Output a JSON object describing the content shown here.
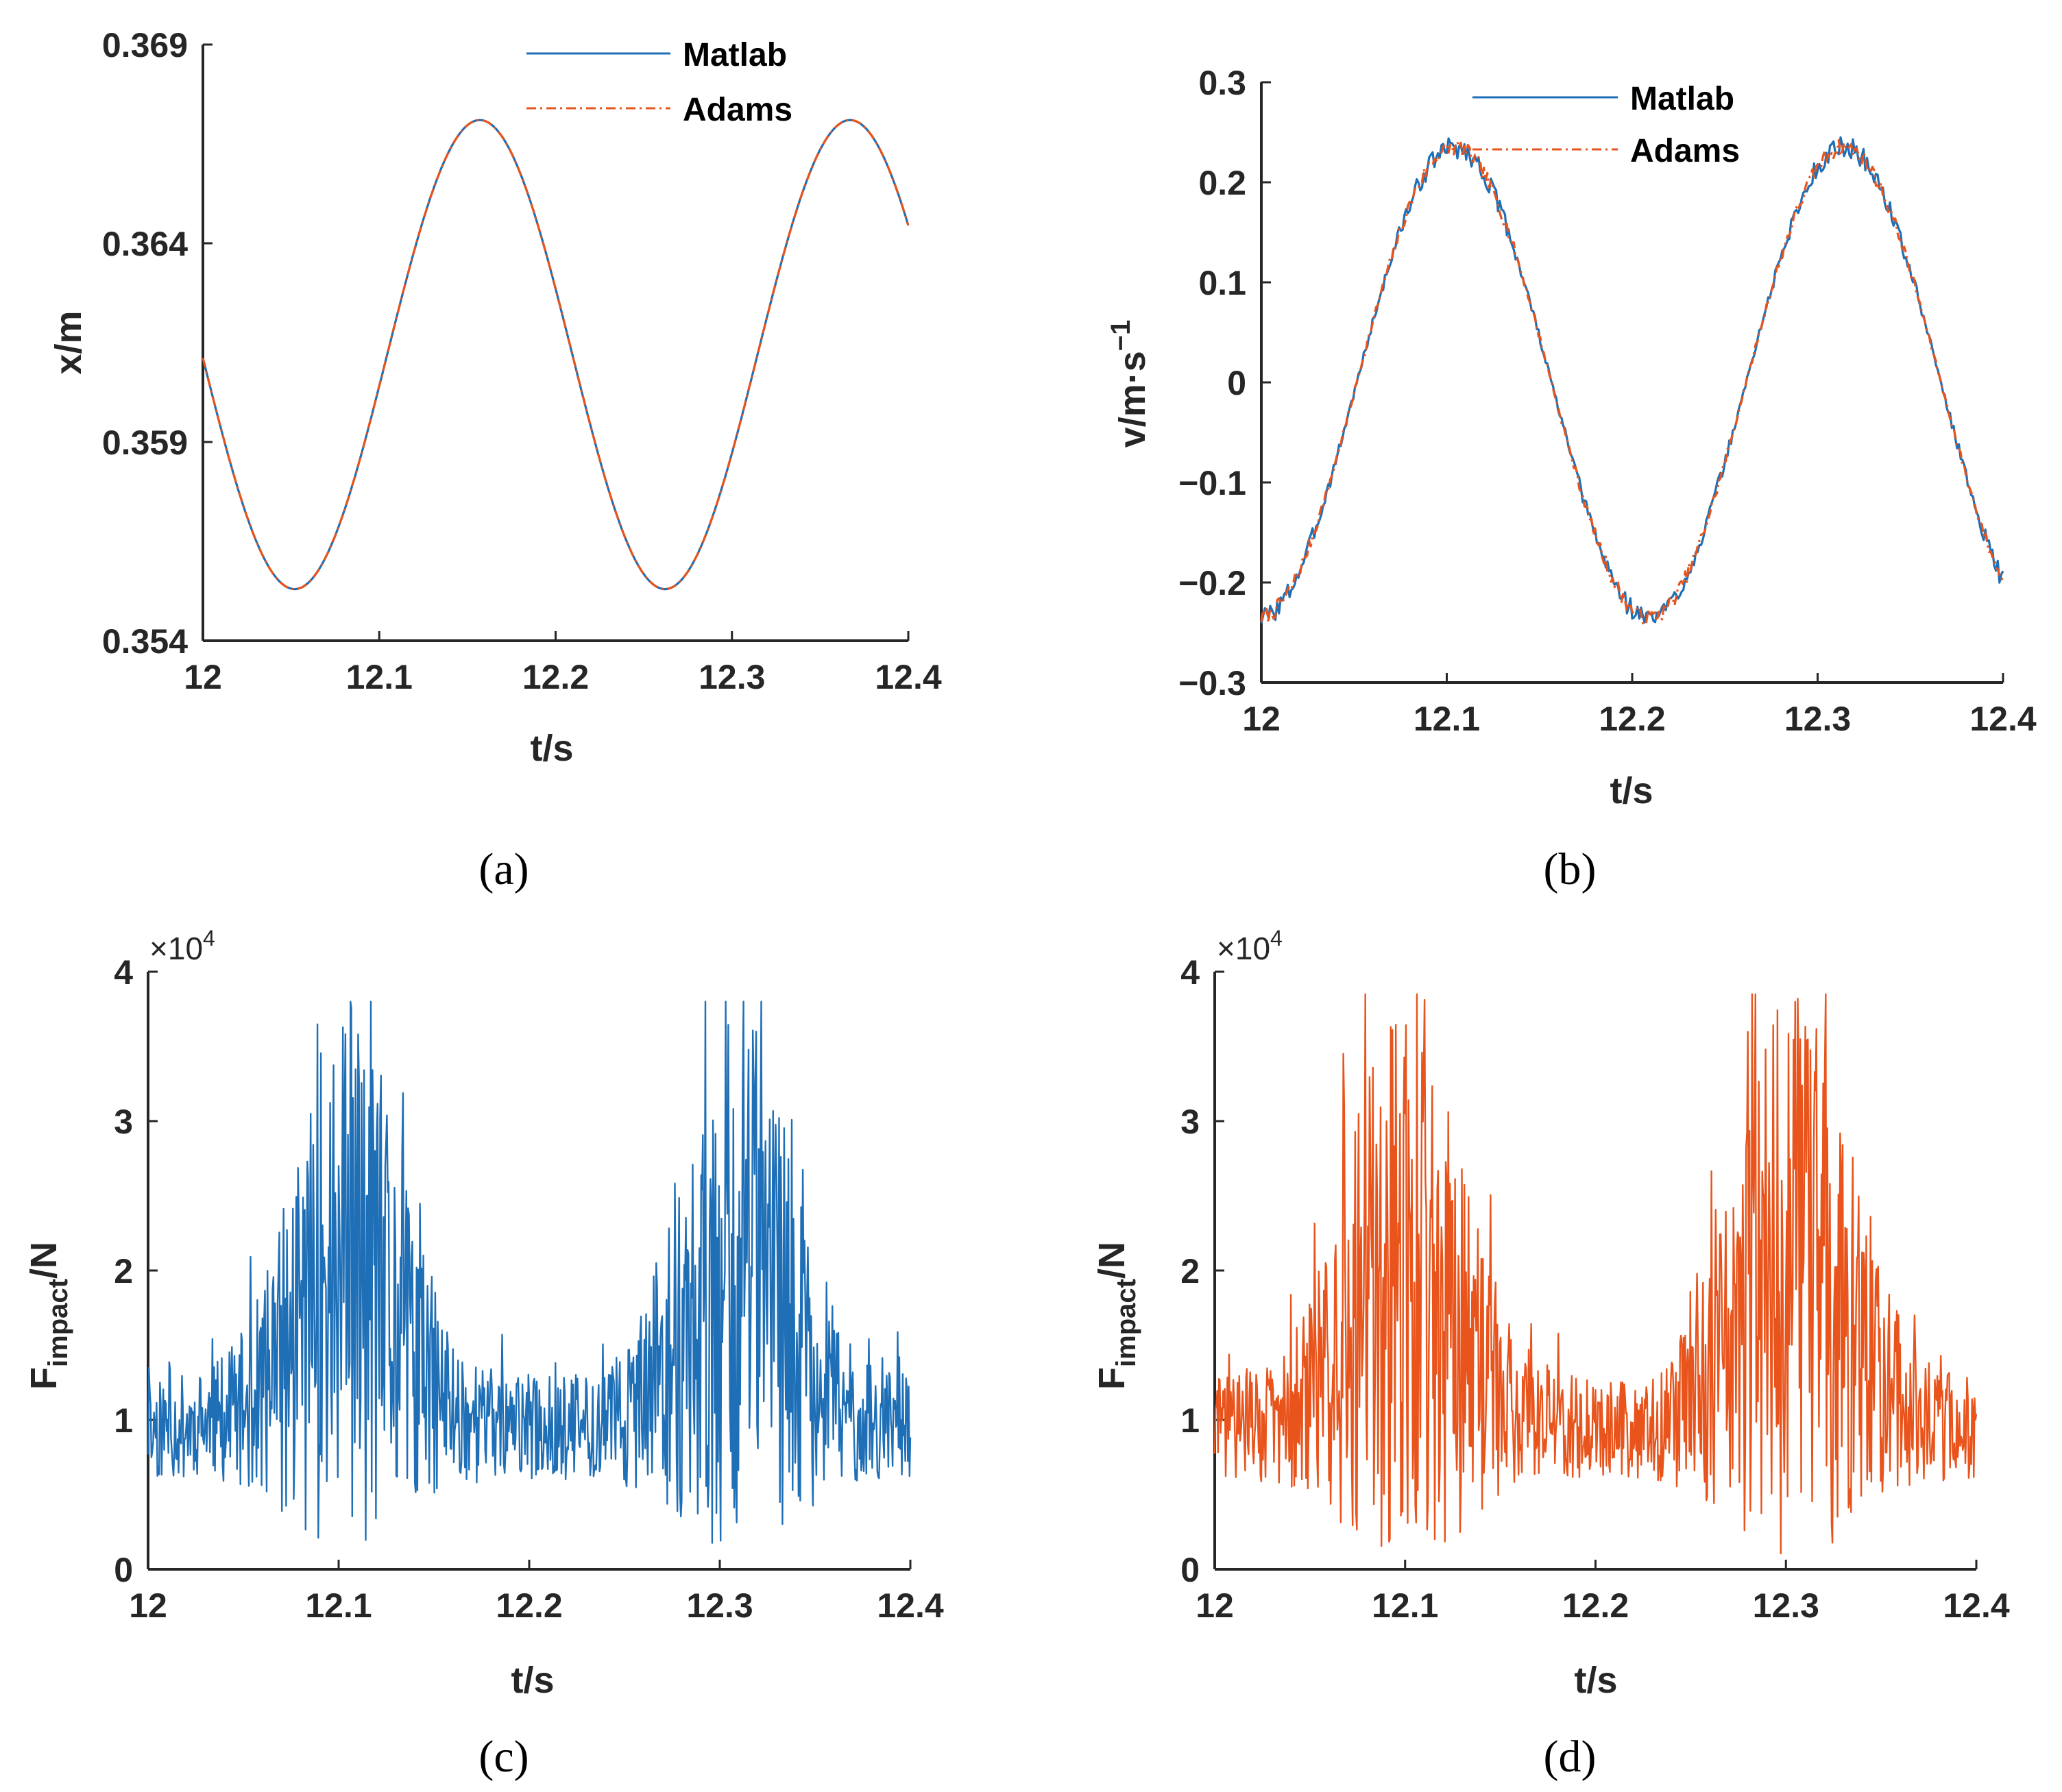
{
  "colors": {
    "matlab": "#1f6fb7",
    "adams": "#e8541c",
    "axis": "#262626"
  },
  "panels": {
    "a": {
      "label": "(a)"
    },
    "b": {
      "label": "(b)"
    },
    "c": {
      "label": "(c)"
    },
    "d": {
      "label": "(d)"
    }
  },
  "chart_data": [
    {
      "id": "a",
      "type": "line",
      "xlabel": "t/s",
      "ylabel": "x/m",
      "xlim": [
        12,
        12.4
      ],
      "ylim": [
        0.354,
        0.369
      ],
      "xticks": [
        12,
        12.1,
        12.2,
        12.3,
        12.4
      ],
      "xtick_labels": [
        "12",
        "12.1",
        "12.2",
        "12.3",
        "12.4"
      ],
      "yticks": [
        0.354,
        0.359,
        0.364,
        0.369
      ],
      "ytick_labels": [
        "0.354",
        "0.359",
        "0.364",
        "0.369"
      ],
      "legend": [
        "Matlab",
        "Adams"
      ],
      "legend_position": "top-right",
      "series": [
        {
          "name": "Matlab",
          "style": "solid",
          "model": "sine",
          "params": {
            "offset": 0.3612,
            "amplitude": 0.0059,
            "period": 0.21,
            "peak_t": 12.157
          }
        },
        {
          "name": "Adams",
          "style": "dash-dot",
          "model": "sine",
          "params": {
            "offset": 0.3612,
            "amplitude": 0.0059,
            "period": 0.21,
            "peak_t": 12.157
          }
        }
      ]
    },
    {
      "id": "b",
      "type": "line",
      "xlabel": "t/s",
      "ylabel": "v/m·s",
      "ylabel_sup": "−1",
      "xlim": [
        12,
        12.4
      ],
      "ylim": [
        -0.3,
        0.3
      ],
      "xticks": [
        12,
        12.1,
        12.2,
        12.3,
        12.4
      ],
      "xtick_labels": [
        "12",
        "12.1",
        "12.2",
        "12.3",
        "12.4"
      ],
      "yticks": [
        -0.3,
        -0.2,
        -0.1,
        0,
        0.1,
        0.2,
        0.3
      ],
      "ytick_labels": [
        "−0.3",
        "−0.2",
        "−0.1",
        "0",
        "0.1",
        "0.2",
        "0.3"
      ],
      "legend": [
        "Matlab",
        "Adams"
      ],
      "legend_position": "top-right",
      "series": [
        {
          "name": "Matlab",
          "style": "solid",
          "model": "sine-ripple",
          "params": {
            "offset": 0.0,
            "amplitude": 0.235,
            "period": 0.21,
            "peak_t": 12.104,
            "ripple": 0.008,
            "seed": 3
          }
        },
        {
          "name": "Adams",
          "style": "dash-dot",
          "model": "sine-ripple",
          "params": {
            "offset": 0.0,
            "amplitude": 0.235,
            "period": 0.21,
            "peak_t": 12.104,
            "ripple": 0.006,
            "seed": 7
          }
        }
      ]
    },
    {
      "id": "c",
      "type": "line",
      "xlabel": "t/s",
      "ylabel": "F",
      "ylabel_sub": "impact",
      "ylabel_suffix": "/N",
      "scale_label": "×10",
      "scale_exp": "4",
      "xlim": [
        12,
        12.4
      ],
      "ylim": [
        0,
        4
      ],
      "xticks": [
        12,
        12.1,
        12.2,
        12.3,
        12.4
      ],
      "xtick_labels": [
        "12",
        "12.1",
        "12.2",
        "12.3",
        "12.4"
      ],
      "yticks": [
        0,
        1,
        2,
        3,
        4
      ],
      "ytick_labels": [
        "0",
        "1",
        "2",
        "3",
        "4"
      ],
      "series": [
        {
          "name": "Matlab",
          "style": "solid",
          "model": "impact",
          "params": {
            "base": 0.95,
            "peak_t": [
              12.105,
              12.31
            ],
            "peak_width": 0.038,
            "peak_mean": 1.0,
            "peak_spread": 1.5,
            "max": 3.8,
            "seed": 11
          }
        }
      ]
    },
    {
      "id": "d",
      "type": "line",
      "xlabel": "t/s",
      "ylabel": "F",
      "ylabel_sub": "impact",
      "ylabel_suffix": "/N",
      "scale_label": "×10",
      "scale_exp": "4",
      "xlim": [
        12,
        12.4
      ],
      "ylim": [
        0,
        4
      ],
      "xticks": [
        12,
        12.1,
        12.2,
        12.3,
        12.4
      ],
      "xtick_labels": [
        "12",
        "12.1",
        "12.2",
        "12.3",
        "12.4"
      ],
      "yticks": [
        0,
        1,
        2,
        3,
        4
      ],
      "ytick_labels": [
        "0",
        "1",
        "2",
        "3",
        "4"
      ],
      "series": [
        {
          "name": "Adams",
          "style": "solid",
          "model": "impact",
          "params": {
            "base": 0.95,
            "peak_t": [
              12.1,
              12.305
            ],
            "peak_width": 0.04,
            "peak_mean": 1.0,
            "peak_spread": 1.6,
            "max": 3.85,
            "seed": 29
          }
        }
      ]
    }
  ]
}
